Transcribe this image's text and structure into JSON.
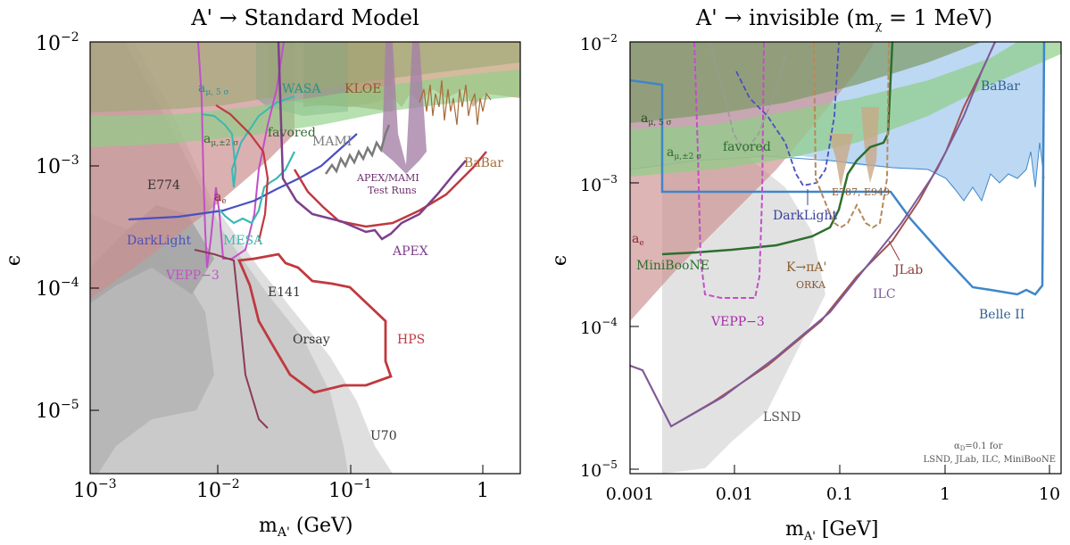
{
  "left": {
    "title": "A' → Standard Model",
    "xlabel_main": "m",
    "xlabel_sub": "A'",
    "xlabel_unit": " (GeV)",
    "ylabel": "ϵ",
    "xticks": [
      {
        "base": "10",
        "exp": "−3"
      },
      {
        "base": "10",
        "exp": "−2"
      },
      {
        "base": "10",
        "exp": "−1"
      },
      {
        "base": "1",
        "exp": ""
      }
    ],
    "yticks": [
      {
        "base": "10",
        "exp": "−2"
      },
      {
        "base": "10",
        "exp": "−3"
      },
      {
        "base": "10",
        "exp": "−4"
      },
      {
        "base": "10",
        "exp": "−5"
      }
    ],
    "labels": {
      "amu5": "a",
      "amu5_sub": "μ, 5 σ",
      "amu2": "a",
      "amu2_sub": "μ,±2 σ",
      "favored": "favored",
      "wasa": "WASA",
      "kloe": "KLOE",
      "babar": "BaBar",
      "mami": "MAMI",
      "e774": "E774",
      "ae": "a",
      "ae_sub": "e",
      "apexmami1": "APEX/MAMI",
      "apexmami2": "Test Runs",
      "darklight": "DarkLight",
      "mesa": "MESA",
      "apex": "APEX",
      "vepp3": "VEPP−3",
      "e141": "E141",
      "orsay": "Orsay",
      "hps": "HPS",
      "u70": "U70"
    }
  },
  "right": {
    "title_main": "A' → invisible (m",
    "title_sub": "χ",
    "title_end": " = 1 MeV)",
    "xlabel_main": "m",
    "xlabel_sub": "A'",
    "xlabel_unit": " [GeV]",
    "ylabel": "ϵ",
    "xticks": [
      "0.001",
      "0.01",
      "0.1",
      "1",
      "10"
    ],
    "yticks": [
      {
        "base": "10",
        "exp": "−2"
      },
      {
        "base": "10",
        "exp": "−3"
      },
      {
        "base": "10",
        "exp": "−4"
      },
      {
        "base": "10",
        "exp": "−5"
      }
    ],
    "labels": {
      "babar": "BaBar",
      "amu5": "a",
      "amu5_sub": "μ, 5 σ",
      "amu2": "a",
      "amu2_sub": "μ,±2 σ",
      "favored": "favored",
      "e787": "E787, E949",
      "darklight": "DarkLight",
      "ae": "a",
      "ae_sub": "e",
      "miniboone": "MiniBooNE",
      "kpia": "K→πA'",
      "orka": "ORKA",
      "jlab": "JLab",
      "ilc": "ILC",
      "vepp3": "VEPP−3",
      "belle2": "Belle II",
      "lsnd": "LSND",
      "note1": "α",
      "note1_sub": "D",
      "note1_end": "=0.1 for",
      "note2": "LSND, JLab, ILC, MiniBooNE"
    }
  },
  "colors": {
    "gray_dark": "#a8a8a8",
    "gray_mid": "#bdbdbd",
    "gray_light": "#dcdcdc",
    "red_region": "#cc8e8e",
    "green_region": "#8fcf86",
    "olive_region": "#9aa873",
    "tan_region": "#c9a987",
    "purple_region": "#a681a8",
    "blue_region": "#b9d6f2",
    "hps": "#c0393f",
    "apex": "#7d3f8c",
    "mesa": "#3bb8b3",
    "darklight": "#4a4fc1",
    "vepp3": "#c24fc8",
    "mami": "#7a7a7a",
    "babar": "#a76b39",
    "belle2": "#3f86c9",
    "jlab": "#a0524f",
    "ilc": "#7d5a9a",
    "miniboone": "#2d6e2d",
    "orka": "#b58a5a"
  },
  "chart_data": [
    {
      "type": "area",
      "panel": "A' → Standard Model",
      "xscale": "log",
      "yscale": "log",
      "xlim": [
        0.001,
        2
      ],
      "ylim": [
        3e-06,
        0.01
      ],
      "series": [
        {
          "name": "APEX",
          "x": [
            0.065,
            0.1,
            0.15,
            0.2,
            0.3,
            0.45
          ],
          "y": [
            0.0006,
            0.00033,
            0.00025,
            0.00025,
            0.00024,
            0.0006
          ]
        },
        {
          "name": "HPS",
          "x": [
            0.02,
            0.04,
            0.08,
            0.12,
            0.2,
            0.2,
            0.1,
            0.05,
            0.025
          ],
          "y": [
            0.00019,
            0.00022,
            0.00015,
            0.00011,
            5.5e-05,
            1.5e-05,
            1.05e-05,
            1.2e-05,
            6e-05
          ]
        },
        {
          "name": "DarkLight",
          "x": [
            0.003,
            0.01,
            0.02,
            0.04,
            0.08
          ],
          "y": [
            0.00035,
            0.00038,
            0.00047,
            0.00075,
            0.00125
          ]
        }
      ]
    },
    {
      "type": "line",
      "panel": "A' → invisible (mχ = 1 MeV)",
      "xscale": "log",
      "yscale": "log",
      "xlim": [
        0.001,
        10
      ],
      "ylim": [
        8e-06,
        0.01
      ],
      "series": [
        {
          "name": "Belle II",
          "x": [
            0.002,
            0.3,
            1,
            5,
            7,
            8
          ],
          "y": [
            0.00085,
            0.00085,
            0.00027,
            0.00016,
            0.00017,
            0.006
          ]
        },
        {
          "name": "JLab",
          "x": [
            0.001,
            0.0023,
            0.02,
            0.1,
            0.3,
            0.8
          ],
          "y": [
            5.5e-05,
            2e-05,
            4e-05,
            0.00014,
            0.0006,
            0.0025
          ]
        },
        {
          "name": "MiniBooNE",
          "x": [
            0.002,
            0.02,
            0.07,
            0.1,
            0.13,
            0.2
          ],
          "y": [
            0.00032,
            0.00034,
            0.0004,
            0.00065,
            0.0018,
            0.002
          ]
        }
      ]
    }
  ]
}
